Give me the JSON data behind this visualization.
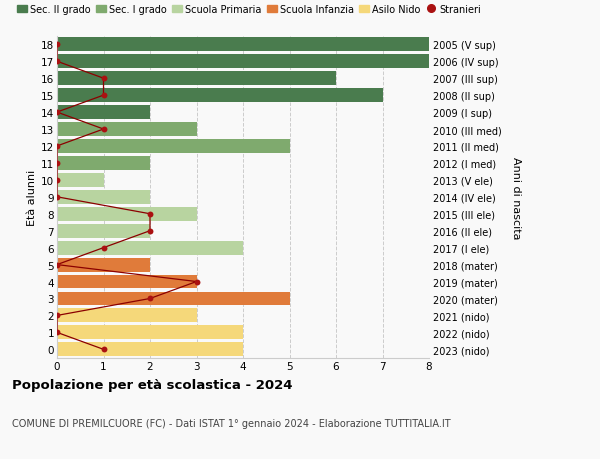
{
  "ages": [
    18,
    17,
    16,
    15,
    14,
    13,
    12,
    11,
    10,
    9,
    8,
    7,
    6,
    5,
    4,
    3,
    2,
    1,
    0
  ],
  "right_labels": [
    "2005 (V sup)",
    "2006 (IV sup)",
    "2007 (III sup)",
    "2008 (II sup)",
    "2009 (I sup)",
    "2010 (III med)",
    "2011 (II med)",
    "2012 (I med)",
    "2013 (V ele)",
    "2014 (IV ele)",
    "2015 (III ele)",
    "2016 (II ele)",
    "2017 (I ele)",
    "2018 (mater)",
    "2019 (mater)",
    "2020 (mater)",
    "2021 (nido)",
    "2022 (nido)",
    "2023 (nido)"
  ],
  "bar_values": [
    8,
    8,
    6,
    7,
    2,
    3,
    5,
    2,
    1,
    2,
    3,
    2,
    4,
    2,
    3,
    5,
    3,
    4,
    4
  ],
  "bar_colors": [
    "#4a7c4e",
    "#4a7c4e",
    "#4a7c4e",
    "#4a7c4e",
    "#4a7c4e",
    "#7faa6e",
    "#7faa6e",
    "#7faa6e",
    "#b8d4a0",
    "#b8d4a0",
    "#b8d4a0",
    "#b8d4a0",
    "#b8d4a0",
    "#e07b3a",
    "#e07b3a",
    "#e07b3a",
    "#f5d87a",
    "#f5d87a",
    "#f5d87a"
  ],
  "stranieri_values": [
    0,
    0,
    1,
    1,
    0,
    1,
    0,
    0,
    0,
    0,
    2,
    2,
    1,
    0,
    3,
    2,
    0,
    0,
    1
  ],
  "legend_labels": [
    "Sec. II grado",
    "Sec. I grado",
    "Scuola Primaria",
    "Scuola Infanzia",
    "Asilo Nido",
    "Stranieri"
  ],
  "legend_colors": [
    "#4a7c4e",
    "#7faa6e",
    "#b8d4a0",
    "#e07b3a",
    "#f5d87a",
    "#aa1111"
  ],
  "title": "Popolazione per età scolastica - 2024",
  "subtitle": "COMUNE DI PREMILCUORE (FC) - Dati ISTAT 1° gennaio 2024 - Elaborazione TUTTITALIA.IT",
  "ylabel_left": "Età alunni",
  "ylabel_right": "Anni di nascita",
  "xlim": [
    0,
    8
  ],
  "bg_color": "#f9f9f9",
  "grid_color": "#cccccc"
}
